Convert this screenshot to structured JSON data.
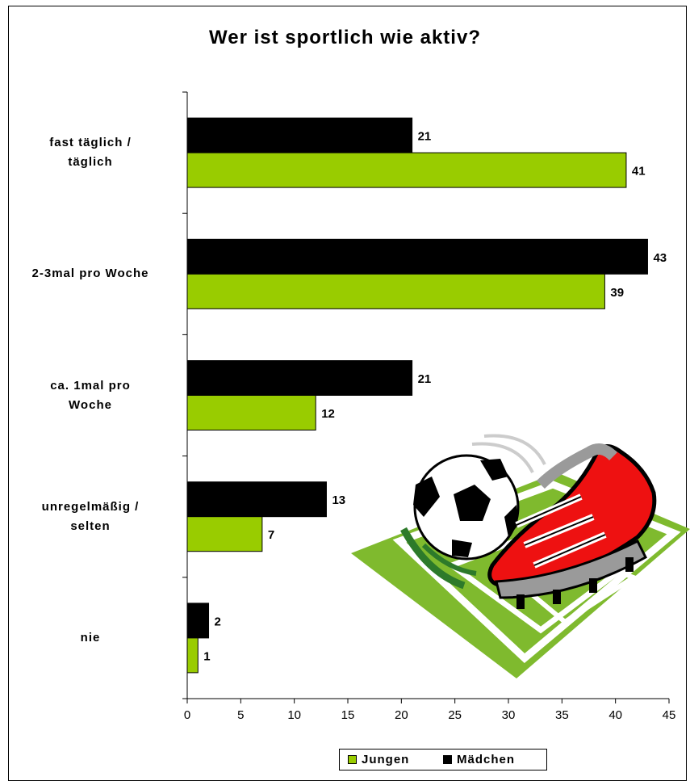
{
  "chart_data": {
    "type": "bar",
    "orientation": "horizontal",
    "title": "Wer ist sportlich wie aktiv?",
    "categories": [
      "fast täglich /\ntäglich",
      "2-3mal pro Woche",
      "ca. 1mal pro\nWoche",
      "unregelmäßig /\nselten",
      "nie"
    ],
    "series": [
      {
        "name": "Mädchen",
        "color": "#000000",
        "values": [
          21,
          43,
          21,
          13,
          2
        ]
      },
      {
        "name": "Jungen",
        "color": "#99cc00",
        "values": [
          41,
          39,
          12,
          7,
          1
        ]
      }
    ],
    "xlim": [
      0,
      45
    ],
    "xticks": [
      "0",
      "5",
      "10",
      "15",
      "20",
      "25",
      "30",
      "35",
      "40",
      "45"
    ],
    "grid": false,
    "legend_position": "bottom",
    "legend": [
      "Jungen",
      "Mädchen"
    ]
  },
  "illustration": {
    "icon": "football-boot-ball-field-icon"
  }
}
